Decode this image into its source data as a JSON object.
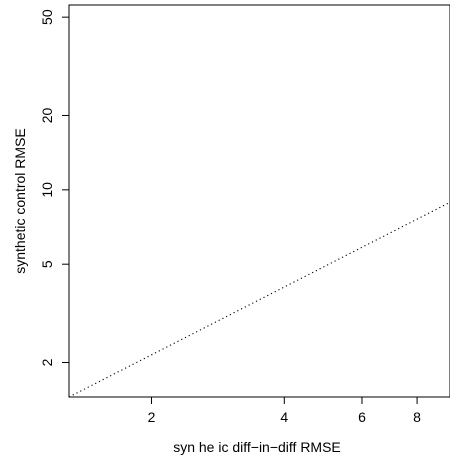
{
  "chart_data": {
    "type": "line",
    "title": "",
    "xlabel": "syn he ic diff−in−diff RMSE",
    "ylabel": "synthetic control RMSE",
    "x_scale": "log",
    "y_scale": "log",
    "xlim": [
      1.3,
      9.5
    ],
    "ylim": [
      1.45,
      56
    ],
    "x_ticks": [
      {
        "value": 2,
        "label": "2"
      },
      {
        "value": 4,
        "label": "4"
      },
      {
        "value": 6,
        "label": "6"
      },
      {
        "value": 8,
        "label": "8"
      }
    ],
    "y_ticks": [
      {
        "value": 2,
        "label": "2"
      },
      {
        "value": 5,
        "label": "5"
      },
      {
        "value": 10,
        "label": "10"
      },
      {
        "value": 20,
        "label": "20"
      },
      {
        "value": 50,
        "label": "50"
      }
    ],
    "grid": false,
    "series": [
      {
        "style": "dotted",
        "color": "#000000",
        "x": [
          1.3,
          9.5
        ],
        "y": [
          1.45,
          8.9
        ]
      }
    ]
  }
}
